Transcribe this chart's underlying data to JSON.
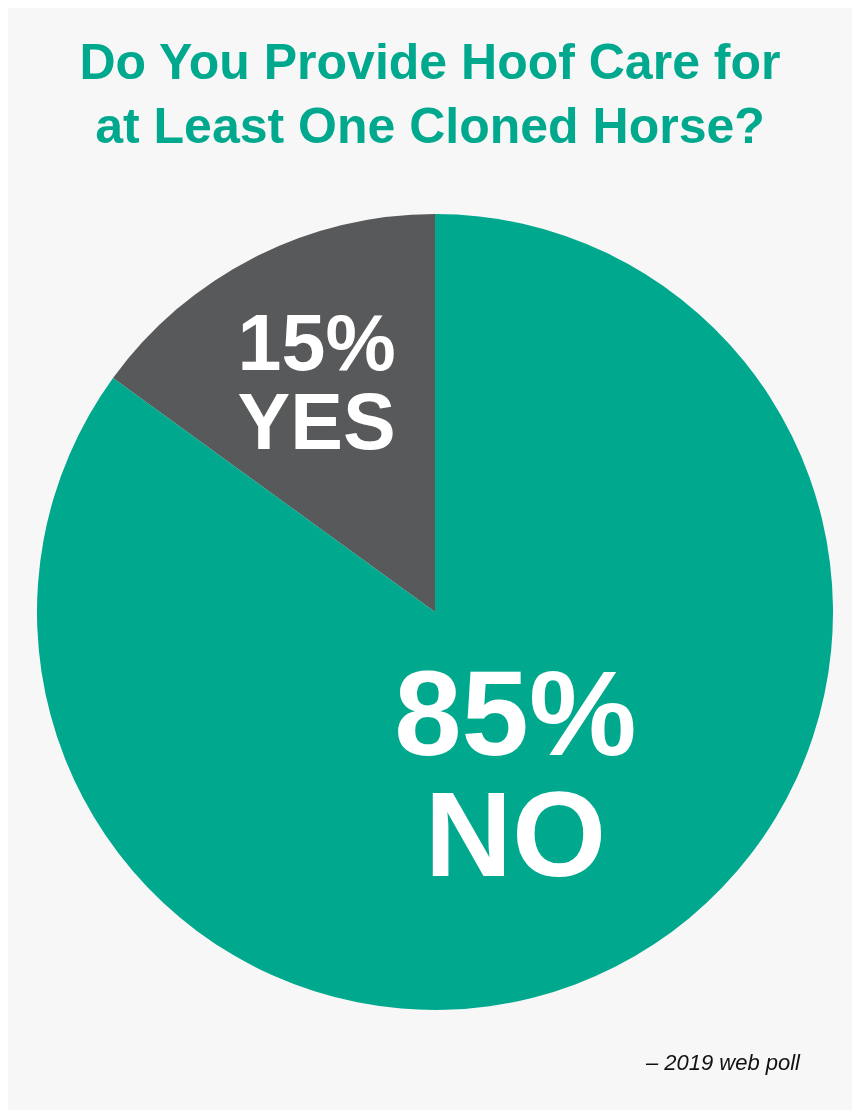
{
  "chart_data": {
    "type": "pie",
    "title": "Do You Provide Hoof Care for at Least One Cloned Horse?",
    "categories": [
      "YES",
      "NO"
    ],
    "values": [
      15,
      85
    ],
    "value_labels": [
      "15%",
      "85%"
    ],
    "colors": [
      "#58595b",
      "#00a88e"
    ],
    "annotations": [
      "– 2019 web poll"
    ]
  }
}
